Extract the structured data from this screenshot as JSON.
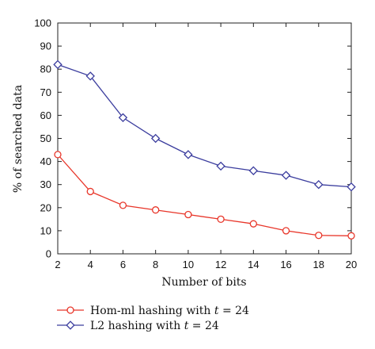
{
  "chart_data": {
    "type": "line",
    "title": "",
    "xlabel": "Number of bits",
    "ylabel": "% of searched data",
    "xlim": [
      2,
      20
    ],
    "ylim": [
      0,
      100
    ],
    "x_ticks": [
      2,
      4,
      6,
      8,
      10,
      12,
      14,
      16,
      18,
      20
    ],
    "y_ticks": [
      0,
      10,
      20,
      30,
      40,
      50,
      60,
      70,
      80,
      90,
      100
    ],
    "grid": false,
    "legend_position": "bottom-left, below plot",
    "series": [
      {
        "name": "Hom-ml hashing with t = 24",
        "legend_prefix": "Hom-ml hashing with ",
        "legend_var": "t",
        "legend_suffix": " = 24",
        "color": "#e8362a",
        "marker": "circle",
        "x": [
          2,
          4,
          6,
          8,
          10,
          12,
          14,
          16,
          18,
          20
        ],
        "y": [
          43,
          27,
          21,
          19,
          17,
          15,
          13,
          10,
          8,
          7.8
        ]
      },
      {
        "name": "L2 hashing with t = 24",
        "legend_prefix": "L2 hashing with ",
        "legend_var": "t",
        "legend_suffix": " = 24",
        "color": "#3b3d9e",
        "marker": "diamond",
        "x": [
          2,
          4,
          6,
          8,
          10,
          12,
          14,
          16,
          18,
          20
        ],
        "y": [
          82,
          77,
          59,
          50,
          43,
          38,
          36,
          34,
          30,
          29
        ]
      }
    ]
  }
}
